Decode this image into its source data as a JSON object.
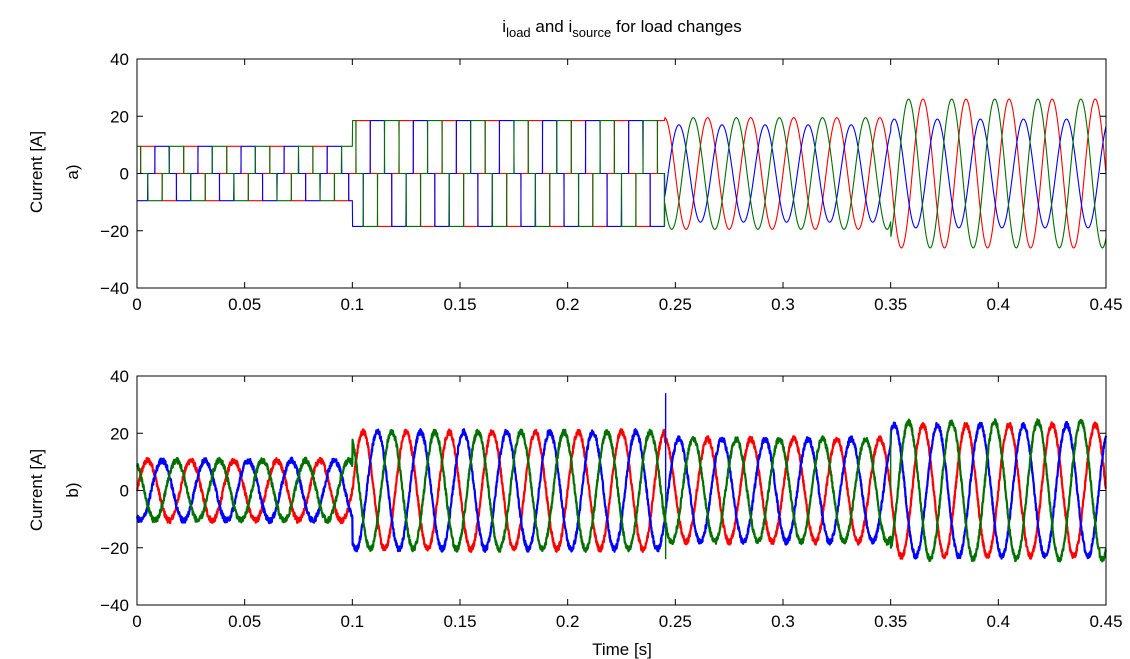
{
  "chart_data": [
    {
      "type": "line",
      "title": {
        "main": "i",
        "sub1": "load",
        "mid": " and i",
        "sub2": "source",
        "end": " for load changes"
      },
      "panel_label": "a)",
      "ylabel": "Current [A]",
      "xlabel": "",
      "xlim": [
        0,
        0.45
      ],
      "ylim": [
        -40,
        40
      ],
      "xticks": [
        0,
        0.05,
        0.1,
        0.15,
        0.2,
        0.25,
        0.3,
        0.35,
        0.4,
        0.45
      ],
      "xtick_labels": [
        "0",
        "0.05",
        "0.1",
        "0.15",
        "0.2",
        "0.25",
        "0.3",
        "0.35",
        "0.4",
        "0.45"
      ],
      "yticks": [
        -40,
        -20,
        0,
        20,
        40
      ],
      "ytick_labels": [
        "−40",
        "−20",
        "0",
        "20",
        "40"
      ],
      "grid": false,
      "series": [
        {
          "color": "#ff0000",
          "phase_deg": 0,
          "segments": [
            {
              "t": [
                0,
                0.1
              ],
              "shape": "square",
              "amplitude": 9.5
            },
            {
              "t": [
                0.1,
                0.245
              ],
              "shape": "square",
              "amplitude": 18.5
            },
            {
              "t": [
                0.245,
                0.35
              ],
              "shape": "sine",
              "amplitude": 19.5
            },
            {
              "t": [
                0.35,
                0.45
              ],
              "shape": "sine",
              "amplitude": 26
            }
          ]
        },
        {
          "color": "#0000ff",
          "phase_deg": -120,
          "segments": [
            {
              "t": [
                0,
                0.1
              ],
              "shape": "square",
              "amplitude": 9.5
            },
            {
              "t": [
                0.1,
                0.245
              ],
              "shape": "square",
              "amplitude": 18.5
            },
            {
              "t": [
                0.245,
                0.35
              ],
              "shape": "sine",
              "amplitude": 17
            },
            {
              "t": [
                0.35,
                0.45
              ],
              "shape": "sine",
              "amplitude": 19
            }
          ]
        },
        {
          "color": "#007000",
          "phase_deg": 120,
          "segments": [
            {
              "t": [
                0,
                0.1
              ],
              "shape": "square",
              "amplitude": 9.5
            },
            {
              "t": [
                0.1,
                0.245
              ],
              "shape": "square",
              "amplitude": 18.5
            },
            {
              "t": [
                0.245,
                0.35
              ],
              "shape": "sine",
              "amplitude": 19.5
            },
            {
              "t": [
                0.35,
                0.45
              ],
              "shape": "sine",
              "amplitude": 26
            }
          ]
        }
      ],
      "frequency_hz": 50
    },
    {
      "type": "line",
      "panel_label": "b)",
      "ylabel": "Current [A]",
      "xlabel": "Time [s]",
      "xlim": [
        0,
        0.45
      ],
      "ylim": [
        -40,
        40
      ],
      "xticks": [
        0,
        0.05,
        0.1,
        0.15,
        0.2,
        0.25,
        0.3,
        0.35,
        0.4,
        0.45
      ],
      "xtick_labels": [
        "0",
        "0.05",
        "0.1",
        "0.15",
        "0.2",
        "0.25",
        "0.3",
        "0.35",
        "0.4",
        "0.45"
      ],
      "yticks": [
        -40,
        -20,
        0,
        20,
        40
      ],
      "ytick_labels": [
        "−40",
        "−20",
        "0",
        "20",
        "40"
      ],
      "grid": false,
      "series": [
        {
          "color": "#ff0000",
          "phase_deg": 0,
          "segments": [
            {
              "t": [
                0,
                0.1
              ],
              "shape": "sine",
              "amplitude": 10.5
            },
            {
              "t": [
                0.1,
                0.245
              ],
              "shape": "sine",
              "amplitude": 20.5
            },
            {
              "t": [
                0.245,
                0.35
              ],
              "shape": "sine",
              "amplitude": 18
            },
            {
              "t": [
                0.35,
                0.45
              ],
              "shape": "sine",
              "amplitude": 23
            }
          ]
        },
        {
          "color": "#0000ff",
          "phase_deg": -120,
          "segments": [
            {
              "t": [
                0,
                0.1
              ],
              "shape": "sine",
              "amplitude": 10.5
            },
            {
              "t": [
                0.1,
                0.245
              ],
              "shape": "sine",
              "amplitude": 20.5
            },
            {
              "t": [
                0.245,
                0.35
              ],
              "shape": "sine",
              "amplitude": 18
            },
            {
              "t": [
                0.35,
                0.45
              ],
              "shape": "sine",
              "amplitude": 23
            }
          ]
        },
        {
          "color": "#007000",
          "phase_deg": 120,
          "segments": [
            {
              "t": [
                0,
                0.1
              ],
              "shape": "sine",
              "amplitude": 10.5
            },
            {
              "t": [
                0.1,
                0.245
              ],
              "shape": "sine",
              "amplitude": 20.5
            },
            {
              "t": [
                0.245,
                0.35
              ],
              "shape": "sine",
              "amplitude": 18
            },
            {
              "t": [
                0.35,
                0.45
              ],
              "shape": "sine",
              "amplitude": 24
            }
          ]
        }
      ],
      "spikes": [
        {
          "t": 0.2455,
          "y": 34,
          "color": "#0000ff"
        },
        {
          "t": 0.2455,
          "y": -24,
          "color": "#007000"
        },
        {
          "t": 0.35,
          "y": 21,
          "color": "#007000"
        }
      ],
      "noise_amplitude": 1.0,
      "frequency_hz": 50
    }
  ]
}
